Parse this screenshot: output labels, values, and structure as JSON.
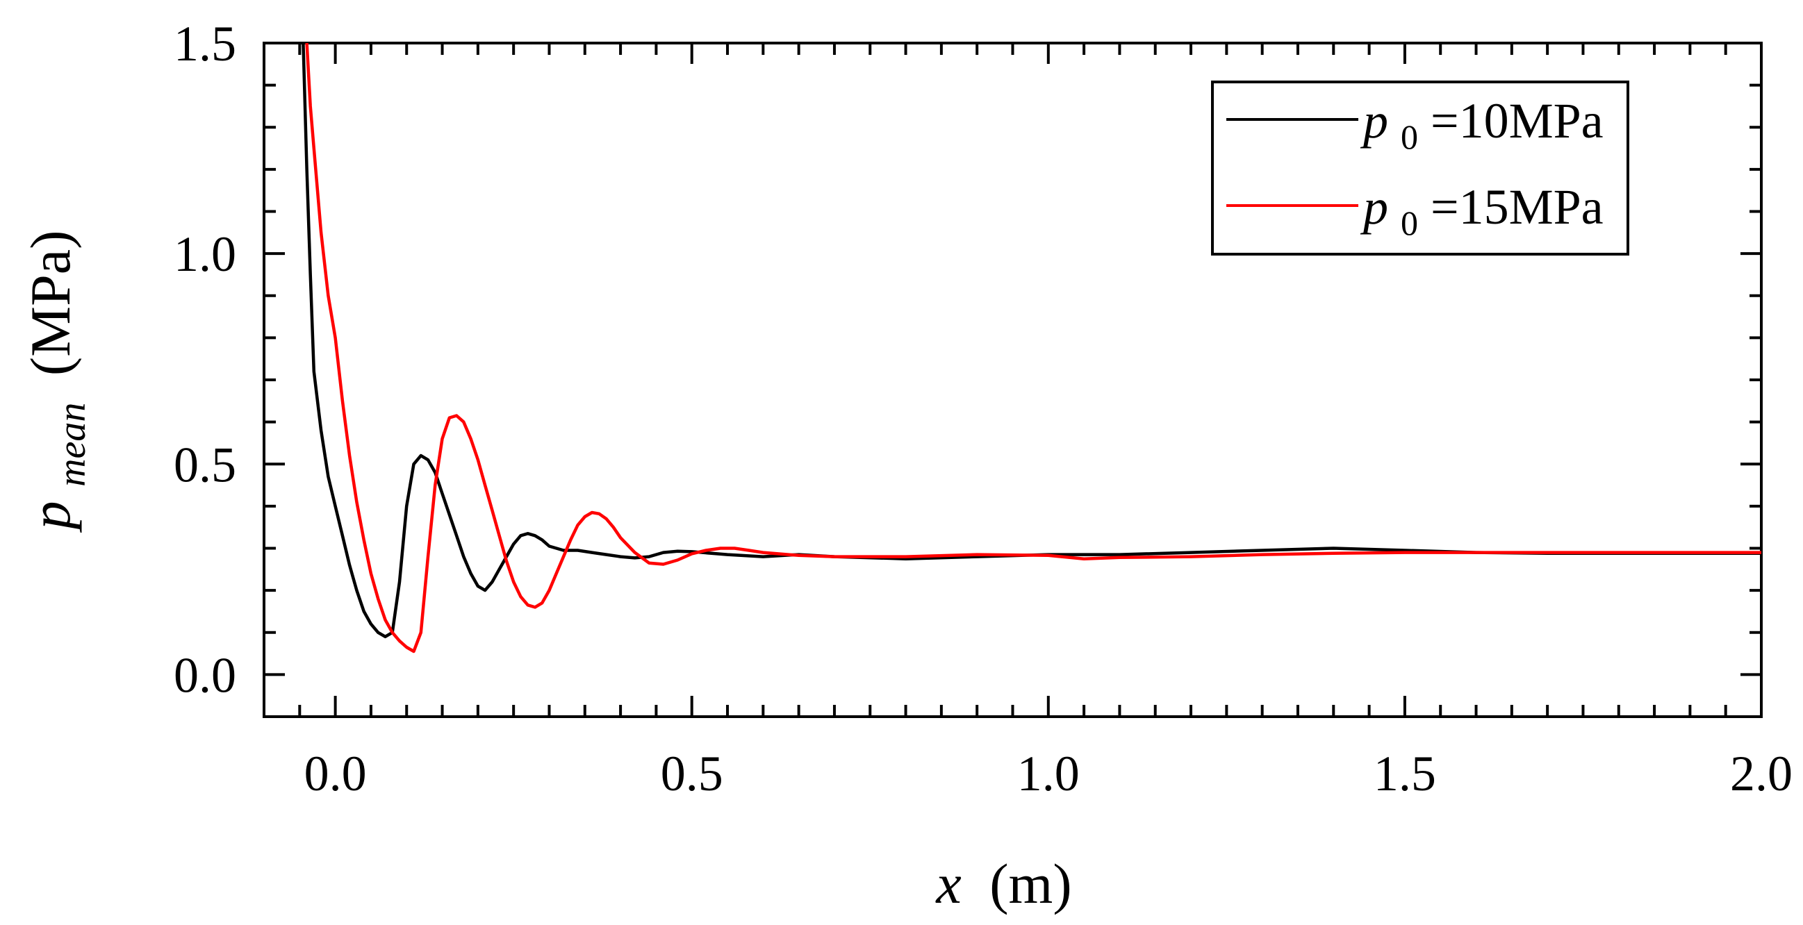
{
  "chart_data": {
    "type": "line",
    "xlabel": {
      "symbol": "x",
      "unit": "(m)"
    },
    "ylabel": {
      "symbol": "p",
      "subscript": "mean",
      "unit": "(MPa)"
    },
    "xlim": [
      -0.1,
      2.0
    ],
    "ylim": [
      -0.1,
      1.5
    ],
    "xticks": [
      "0.0",
      "0.5",
      "1.0",
      "1.5",
      "2.0"
    ],
    "yticks": [
      "0.0",
      "0.5",
      "1.0",
      "1.5"
    ],
    "xtick_values": [
      0.0,
      0.5,
      1.0,
      1.5,
      2.0
    ],
    "ytick_values": [
      0.0,
      0.5,
      1.0,
      1.5
    ],
    "grid": false,
    "legend_position": "top-right",
    "series": [
      {
        "name": "p0=10MPa",
        "label_symbol": "p",
        "label_subscript": "0",
        "label_rest": "=10MPa",
        "color": "#000000",
        "x": [
          -0.045,
          -0.04,
          -0.035,
          -0.03,
          -0.02,
          -0.01,
          0.0,
          0.01,
          0.02,
          0.03,
          0.04,
          0.05,
          0.06,
          0.07,
          0.08,
          0.09,
          0.1,
          0.11,
          0.12,
          0.13,
          0.14,
          0.15,
          0.16,
          0.17,
          0.18,
          0.19,
          0.2,
          0.21,
          0.22,
          0.23,
          0.24,
          0.25,
          0.26,
          0.27,
          0.28,
          0.29,
          0.3,
          0.32,
          0.34,
          0.36,
          0.38,
          0.4,
          0.42,
          0.44,
          0.46,
          0.48,
          0.5,
          0.55,
          0.6,
          0.65,
          0.7,
          0.8,
          0.9,
          1.0,
          1.1,
          1.2,
          1.3,
          1.4,
          1.5,
          1.6,
          1.7,
          1.8,
          1.9,
          2.0
        ],
        "y": [
          1.5,
          1.2,
          0.95,
          0.72,
          0.58,
          0.47,
          0.4,
          0.33,
          0.26,
          0.2,
          0.15,
          0.12,
          0.1,
          0.09,
          0.1,
          0.22,
          0.4,
          0.5,
          0.52,
          0.51,
          0.48,
          0.43,
          0.38,
          0.33,
          0.28,
          0.24,
          0.21,
          0.2,
          0.22,
          0.25,
          0.28,
          0.31,
          0.33,
          0.335,
          0.33,
          0.32,
          0.305,
          0.295,
          0.295,
          0.29,
          0.285,
          0.28,
          0.277,
          0.28,
          0.29,
          0.293,
          0.292,
          0.285,
          0.28,
          0.285,
          0.28,
          0.275,
          0.28,
          0.285,
          0.285,
          0.29,
          0.295,
          0.3,
          0.295,
          0.29,
          0.288,
          0.288,
          0.288,
          0.288
        ]
      },
      {
        "name": "p0=15MPa",
        "label_symbol": "p",
        "label_subscript": "0",
        "label_rest": "=15MPa",
        "color": "#ff0000",
        "x": [
          -0.04,
          -0.035,
          -0.03,
          -0.02,
          -0.01,
          0.0,
          0.01,
          0.02,
          0.03,
          0.04,
          0.05,
          0.06,
          0.07,
          0.08,
          0.09,
          0.1,
          0.11,
          0.12,
          0.13,
          0.14,
          0.15,
          0.16,
          0.17,
          0.18,
          0.19,
          0.2,
          0.21,
          0.22,
          0.23,
          0.24,
          0.25,
          0.26,
          0.27,
          0.28,
          0.29,
          0.3,
          0.31,
          0.32,
          0.33,
          0.34,
          0.35,
          0.36,
          0.37,
          0.38,
          0.39,
          0.4,
          0.42,
          0.44,
          0.46,
          0.48,
          0.5,
          0.52,
          0.54,
          0.56,
          0.58,
          0.6,
          0.65,
          0.7,
          0.8,
          0.9,
          1.0,
          1.05,
          1.1,
          1.2,
          1.3,
          1.4,
          1.5,
          1.6,
          1.7,
          1.8,
          1.9,
          2.0
        ],
        "y": [
          1.5,
          1.35,
          1.25,
          1.05,
          0.9,
          0.8,
          0.65,
          0.52,
          0.41,
          0.32,
          0.24,
          0.18,
          0.13,
          0.1,
          0.08,
          0.065,
          0.055,
          0.1,
          0.28,
          0.45,
          0.56,
          0.61,
          0.615,
          0.6,
          0.56,
          0.51,
          0.45,
          0.39,
          0.33,
          0.27,
          0.22,
          0.185,
          0.165,
          0.16,
          0.17,
          0.2,
          0.24,
          0.28,
          0.32,
          0.355,
          0.375,
          0.385,
          0.382,
          0.37,
          0.35,
          0.325,
          0.29,
          0.265,
          0.262,
          0.272,
          0.287,
          0.295,
          0.3,
          0.3,
          0.295,
          0.29,
          0.283,
          0.28,
          0.28,
          0.285,
          0.283,
          0.275,
          0.278,
          0.28,
          0.285,
          0.288,
          0.29,
          0.29,
          0.29,
          0.29,
          0.29,
          0.29
        ]
      }
    ]
  }
}
